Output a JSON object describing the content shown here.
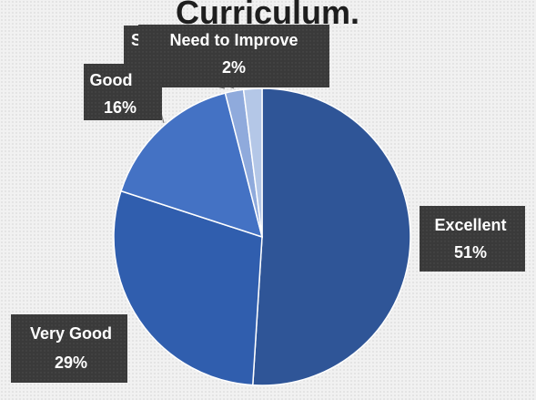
{
  "chart_data": {
    "type": "pie",
    "title": "Curriculum.",
    "start_angle_deg": 0,
    "direction": "clockwise",
    "slices": [
      {
        "name": "Excellent",
        "value": 51,
        "label_pct": "51%",
        "color": "#2f5597"
      },
      {
        "name": "Very Good",
        "value": 29,
        "label_pct": "29%",
        "color": "#305eae"
      },
      {
        "name": "Good",
        "value": 16,
        "label_pct": "16%",
        "color": "#4472c4"
      },
      {
        "name": "S",
        "value": 2,
        "label_pct": "",
        "color": "#8faadc"
      },
      {
        "name": "Need to Improve",
        "value": 2,
        "label_pct": "2%",
        "color": "#b4c7e7"
      }
    ],
    "label_style": {
      "background": "#3b3b3b",
      "text_color": "#ffffff"
    },
    "legend": "none"
  }
}
